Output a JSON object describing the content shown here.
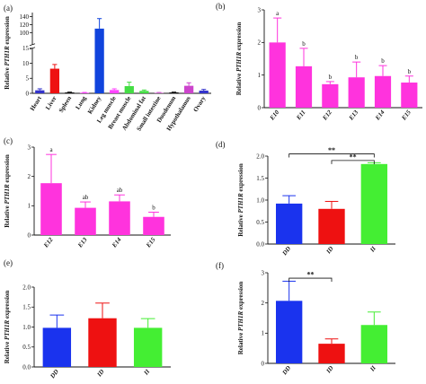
{
  "chart_data": [
    {
      "id": "a",
      "panel_label": "(a)",
      "type": "bar",
      "ylabel": "Relative PTH1R expression",
      "axis_break": true,
      "categories": [
        "Heart",
        "Liver",
        "Spleen",
        "Lung",
        "Kidney",
        "Leg muscle",
        "Breast muscle",
        "Abdominal fat",
        "Small intestine",
        "Duodenum",
        "Hypothalamus",
        "Ovary"
      ],
      "values": [
        1.0,
        8.2,
        0.3,
        0.2,
        110,
        1.1,
        2.4,
        0.8,
        0.2,
        0.3,
        2.5,
        0.9
      ],
      "errors": [
        0.5,
        1.4,
        0.1,
        0.1,
        25,
        0.4,
        1.3,
        0.3,
        0.1,
        0.1,
        1.0,
        0.4
      ],
      "colors": [
        "#3333cc",
        "#ee1111",
        "#111111",
        "#ff44ff",
        "#1144dd",
        "#ff44ff",
        "#44dd44",
        "#44dd44",
        "#cc66cc",
        "#111111",
        "#cc44cc",
        "#3333cc"
      ],
      "lower_ylim": [
        0,
        15
      ],
      "upper_ylim": [
        70,
        150
      ],
      "lower_ticks": [
        "0",
        "5",
        "10",
        "15"
      ],
      "upper_ticks": [
        "100",
        "120",
        "140"
      ],
      "annotations": []
    },
    {
      "id": "b",
      "panel_label": "(b)",
      "type": "bar",
      "ylabel": "Relative PTH1R expression",
      "categories": [
        "E10",
        "E11",
        "E12",
        "E13",
        "E14",
        "E15"
      ],
      "values": [
        2.0,
        1.27,
        0.72,
        0.93,
        0.97,
        0.77
      ],
      "errors": [
        0.75,
        0.55,
        0.08,
        0.47,
        0.32,
        0.2
      ],
      "colors": [
        "#ff33dd",
        "#ff33dd",
        "#ff33dd",
        "#ff33dd",
        "#ff33dd",
        "#ff33dd"
      ],
      "letters": [
        "a",
        "b",
        "b",
        "b",
        "b",
        "b"
      ],
      "ylim": [
        0,
        3
      ],
      "ticks": [
        "0",
        "1",
        "2",
        "3"
      ],
      "annotations": []
    },
    {
      "id": "c",
      "panel_label": "(c)",
      "type": "bar",
      "ylabel": "Relative PTH1R expression",
      "categories": [
        "E12",
        "E13",
        "E14",
        "E15"
      ],
      "values": [
        1.77,
        0.93,
        1.15,
        0.62
      ],
      "errors": [
        0.98,
        0.2,
        0.22,
        0.16
      ],
      "colors": [
        "#ff33dd",
        "#ff33dd",
        "#ff33dd",
        "#ff33dd"
      ],
      "letters": [
        "a",
        "ab",
        "ab",
        "b"
      ],
      "ylim": [
        0,
        3
      ],
      "ticks": [
        "0",
        "1",
        "2",
        "3"
      ],
      "annotations": []
    },
    {
      "id": "d",
      "panel_label": "(d)",
      "type": "bar",
      "ylabel": "Relative PTH1R expression",
      "categories": [
        "DD",
        "ID",
        "II"
      ],
      "values": [
        0.92,
        0.8,
        1.82
      ],
      "errors": [
        0.18,
        0.17,
        0.03
      ],
      "colors": [
        "#1a33ee",
        "#ee1111",
        "#44ee33"
      ],
      "ylim": [
        0,
        2.0
      ],
      "ticks": [
        "0.0",
        "0.5",
        "1.0",
        "1.5",
        "2.0"
      ],
      "annotations": [
        {
          "text": "**",
          "from": 0,
          "to": 2,
          "y": 2.05
        },
        {
          "text": "**",
          "from": 1,
          "to": 2,
          "y": 1.9
        }
      ]
    },
    {
      "id": "e",
      "panel_label": "(e)",
      "type": "bar",
      "ylabel": "Relative PTH1R expression",
      "categories": [
        "DD",
        "ID",
        "II"
      ],
      "values": [
        0.98,
        1.22,
        0.98
      ],
      "errors": [
        0.32,
        0.38,
        0.23
      ],
      "colors": [
        "#1a33ee",
        "#ee1111",
        "#44ee33"
      ],
      "ylim": [
        0,
        2.0
      ],
      "ticks": [
        "0.0",
        "0.5",
        "1.0",
        "1.5",
        "2.0"
      ],
      "annotations": []
    },
    {
      "id": "f",
      "panel_label": "(f)",
      "type": "bar",
      "ylabel": "Relative PTH1R expression",
      "categories": [
        "DD",
        "ID",
        "II"
      ],
      "values": [
        2.07,
        0.65,
        1.27
      ],
      "errors": [
        0.65,
        0.16,
        0.43
      ],
      "colors": [
        "#1a33ee",
        "#ee1111",
        "#44ee33"
      ],
      "ylim": [
        0,
        3
      ],
      "ticks": [
        "0",
        "1",
        "2",
        "3"
      ],
      "annotations": [
        {
          "text": "**",
          "from": 0,
          "to": 1,
          "y": 2.82
        }
      ]
    }
  ]
}
